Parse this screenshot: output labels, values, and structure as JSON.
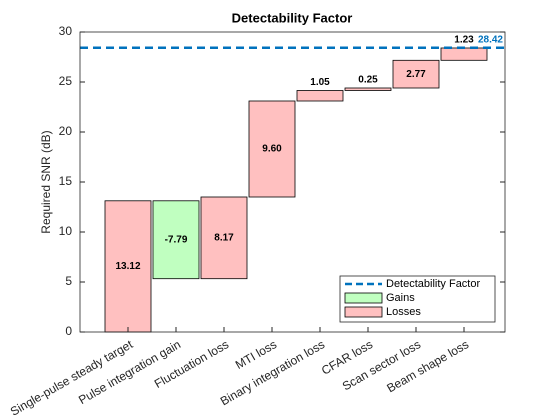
{
  "chart_data": {
    "type": "waterfall",
    "title": "Detectability Factor",
    "y_label": "Required SNR (dB)",
    "categories": [
      "Single-pulse steady target",
      "Pulse integration gain",
      "Fluctuation loss",
      "MTI loss",
      "Binary integration loss",
      "CFAR loss",
      "Scan sector loss",
      "Beam shape loss"
    ],
    "values": [
      13.12,
      -7.79,
      8.17,
      9.6,
      1.05,
      0.25,
      2.77,
      1.23
    ],
    "value_labels": [
      "13.12",
      "-7.79",
      "8.17",
      "9.60",
      "1.05",
      "0.25",
      "2.77",
      "1.23"
    ],
    "gains": {
      "name": "Gains",
      "color": "#c0ffc0"
    },
    "losses": {
      "name": "Losses",
      "color": "#ffc0c0"
    },
    "threshold": {
      "name": "Detectability Factor",
      "value": 28.42,
      "color": "#0072bd"
    },
    "ylim": [
      0,
      30
    ],
    "yticks": [
      0,
      5,
      10,
      15,
      20,
      25,
      30
    ],
    "legend_position": "lower right"
  }
}
